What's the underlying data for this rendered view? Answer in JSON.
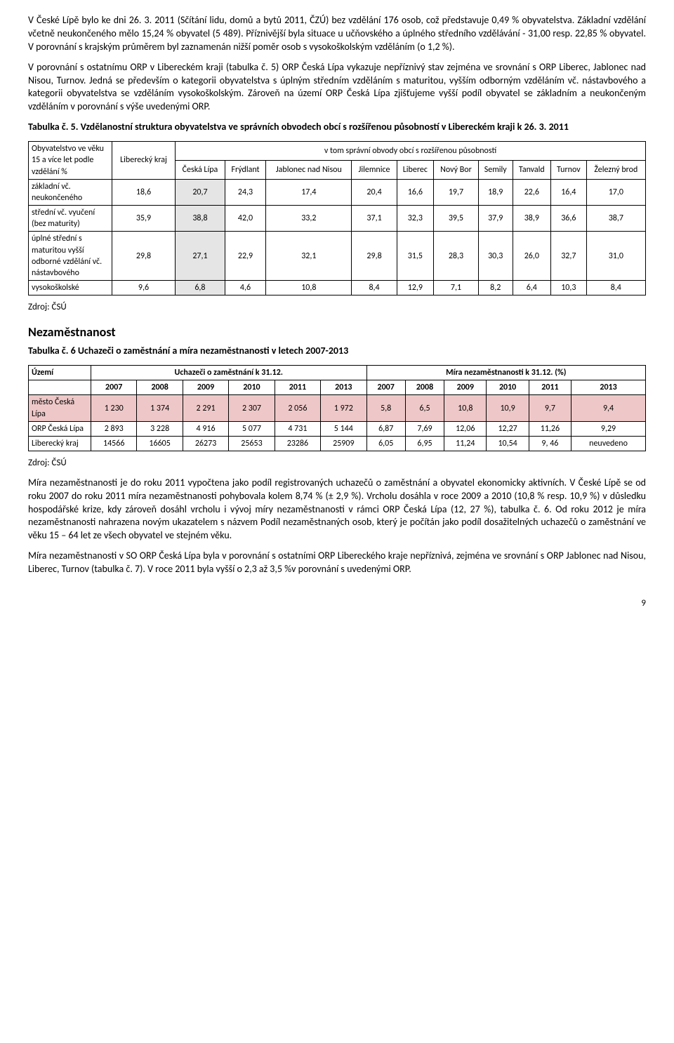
{
  "para1": "V České Lípě bylo ke dni 26. 3. 2011 (Sčítání lidu, domů a bytů 2011, ČZÚ) bez vzdělání 176 osob, což představuje 0,49 % obyvatelstva. Základní vzdělání včetně neukončeného mělo 15,24 % obyvatel (5 489). Příznivější byla situace u učňovského a úplného středního vzdělávání - 31,00 resp. 22,85 % obyvatel. V porovnání s krajským průměrem byl zaznamenán nižší poměr osob s vysokoškolským vzděláním (o 1,2 %).",
  "para2": "V porovnání s ostatnímu ORP v Libereckém kraji (tabulka č. 5) ORP Česká Lípa vykazuje nepříznivý stav zejména ve srovnání s ORP Liberec, Jablonec nad Nisou, Turnov. Jedná se především o kategorii obyvatelstva s úplným středním vzděláním s maturitou, vyšším odborným vzděláním vč. nástavbového a kategorii obyvatelstva se vzděláním vysokoškolským. Zároveň na území ORP Česká Lípa zjišťujeme vyšší podíl obyvatel se základním a neukončeným vzděláním v porovnání s výše uvedenými ORP.",
  "tab5": {
    "title": "Tabulka č. 5. Vzdělanostní struktura obyvatelstva ve správních obvodech obcí s rozšířenou působností v Libereckém kraji k 26. 3. 2011",
    "rowhdr": "Obyvatelstvo ve věku 15 a více let podle vzdělání %",
    "col_lk": "Liberecký kraj",
    "spanhdr": "v tom správní obvody obcí s rozšířenou působností",
    "cols": [
      "Česká Lípa",
      "Frýdlant",
      "Jablonec nad Nisou",
      "Jilemnice",
      "Liberec",
      "Nový Bor",
      "Semily",
      "Tanvald",
      "Turnov",
      "Železný brod"
    ],
    "rows": [
      {
        "label": "základní vč. neukončeného",
        "lk": "18,6",
        "v": [
          "20,7",
          "24,3",
          "17,4",
          "20,4",
          "16,6",
          "19,7",
          "18,9",
          "22,6",
          "16,4",
          "17,0"
        ]
      },
      {
        "label": "střední vč. vyučení (bez maturity)",
        "lk": "35,9",
        "v": [
          "38,8",
          "42,0",
          "33,2",
          "37,1",
          "32,3",
          "39,5",
          "37,9",
          "38,9",
          "36,6",
          "38,7"
        ]
      },
      {
        "label": "úplné střední s maturitou vyšší odborné vzdělání vč. nástavbového",
        "lk": "29,8",
        "v": [
          "27,1",
          "22,9",
          "32,1",
          "29,8",
          "31,5",
          "28,3",
          "30,3",
          "26,0",
          "32,7",
          "31,0"
        ]
      },
      {
        "label": "vysokoškolské",
        "lk": "9,6",
        "v": [
          "6,8",
          "4,6",
          "10,8",
          "8,4",
          "12,9",
          "7,1",
          "8,2",
          "6,4",
          "10,3",
          "8,4"
        ]
      }
    ],
    "source": "Zdroj: ČSÚ"
  },
  "sec": "Nezaměstnanost",
  "tab6": {
    "title": "Tabulka č. 6 Uchazeči o zaměstnání a míra nezaměstnanosti v letech 2007-2013",
    "h_area": "Území",
    "h_left": "Uchazeči o zaměstnání k 31.12.",
    "h_right": "Míra nezaměstnanosti k 31.12. (%)",
    "years": [
      "2007",
      "2008",
      "2009",
      "2010",
      "2011",
      "2013",
      "2007",
      "2008",
      "2009",
      "2010",
      "2011",
      "2013"
    ],
    "rows": [
      {
        "label": "město Česká Lípa",
        "v": [
          "1 230",
          "1 374",
          "2 291",
          "2 307",
          "2 056",
          "1 972",
          "5,8",
          "6,5",
          "10,8",
          "10,9",
          "9,7",
          "9,4"
        ],
        "cls": "hl0"
      },
      {
        "label": "ORP Česká Lípa",
        "v": [
          "2 893",
          "3 228",
          "4 916",
          "5 077",
          "4 731",
          "5 144",
          "6,87",
          "7,69",
          "12,06",
          "12,27",
          "11,26",
          "9,29"
        ],
        "cls": "hl1"
      },
      {
        "label": "Liberecký kraj",
        "v": [
          "14566",
          "16605",
          "26273",
          "25653",
          "23286",
          "25909",
          "6,05",
          "6,95",
          "11,24",
          "10,54",
          "9, 46",
          "neuvedeno"
        ],
        "cls": "hl2"
      }
    ],
    "source": "Zdroj: ČSÚ"
  },
  "para3": "Míra nezaměstnanosti je do roku 2011 vypočtena jako podíl registrovaných uchazečů o zaměstnání a obyvatel ekonomicky aktivních. V České Lípě se od roku 2007 do roku 2011 míra nezaměstnanosti pohybovala kolem 8,74 % (± 2,9 %). Vrcholu dosáhla v roce 2009 a 2010 (10,8 % resp. 10,9 %) v důsledku hospodářské krize, kdy zároveň dosáhl vrcholu i vývoj míry nezaměstnanosti v rámci ORP Česká Lípa (12, 27 %), tabulka č. 6. Od roku 2012 je míra nezaměstnanosti nahrazena novým ukazatelem s názvem Podíl nezaměstnaných osob, který je počítán jako podíl dosažitelných uchazečů o zaměstnání ve věku 15 – 64 let ze všech obyvatel ve stejném věku.",
  "para4": "Míra nezaměstnanosti v SO ORP Česká Lípa byla v porovnání s ostatními ORP Libereckého kraje nepříznivá, zejména ve srovnání s ORP Jablonec nad Nisou, Liberec, Turnov (tabulka č. 7). V roce 2011 byla vyšší o 2,3 až 3,5 %v porovnání s uvedenými ORP.",
  "pagenum": "9"
}
